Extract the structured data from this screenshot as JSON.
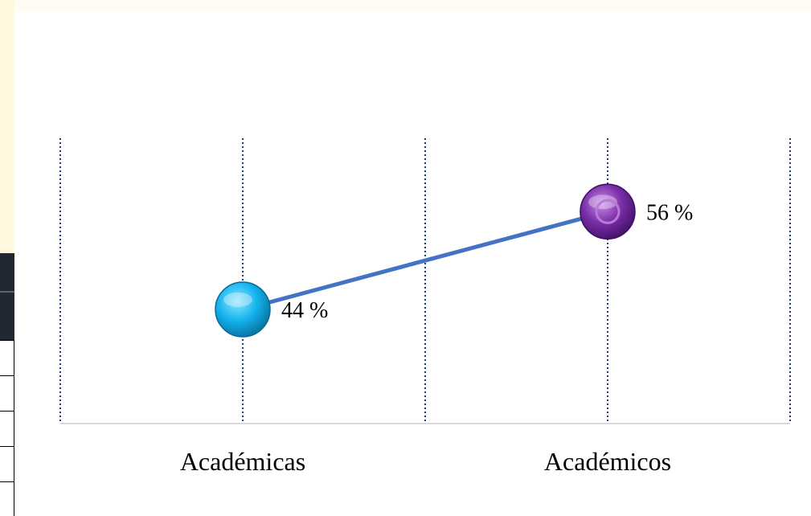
{
  "chart_data": {
    "type": "line",
    "categories": [
      "Académicas",
      "Académicos"
    ],
    "values": [
      44,
      56
    ],
    "value_labels": [
      "44 %",
      "56 %"
    ],
    "ylim": [
      30,
      65
    ],
    "grid": "vertical dotted lines",
    "colors": {
      "line": "#4472c4",
      "gridline": "#1f3a7a",
      "axis": "#d9d9d9",
      "marker_1": "#14b4ee",
      "marker_2": "#7a2ea8"
    }
  }
}
